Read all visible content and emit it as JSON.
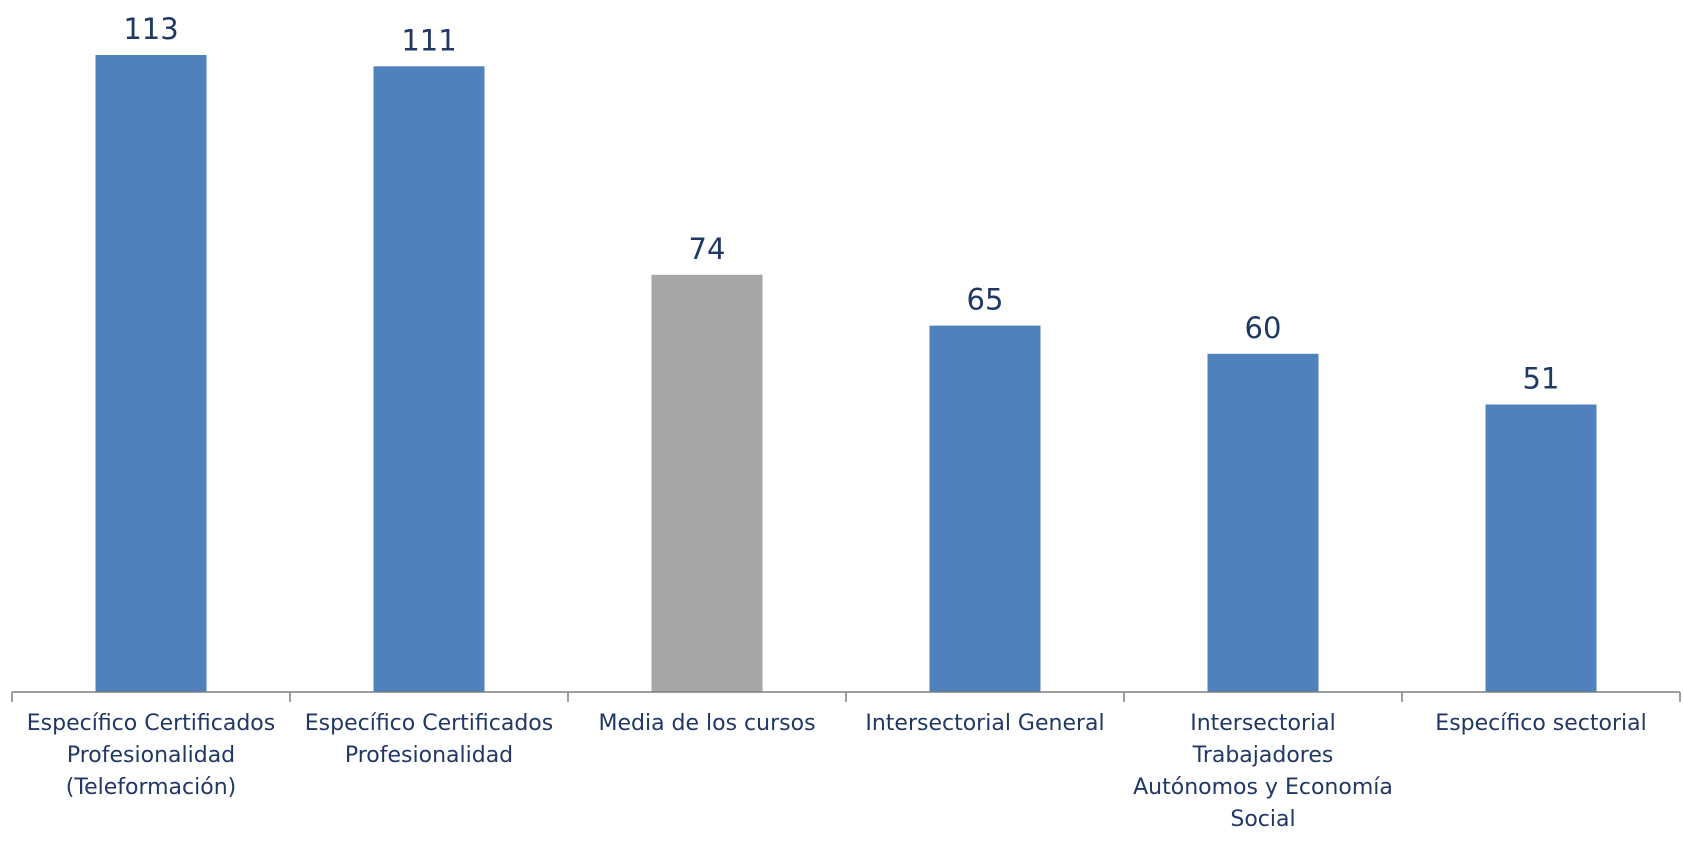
{
  "chart_data": {
    "type": "bar",
    "categories": [
      "Específico Certificados Profesionalidad (Teleformación)",
      "Específico Certificados Profesionalidad",
      "Media de los cursos",
      "Intersectorial General",
      "Intersectorial Trabajadores Autónomos y Economía Social",
      "Específico sectorial"
    ],
    "category_lines": [
      [
        "Específico Certificados",
        "Profesionalidad",
        "(Teleformación)"
      ],
      [
        "Específico Certificados",
        "Profesionalidad"
      ],
      [
        "Media de los cursos"
      ],
      [
        "Intersectorial General"
      ],
      [
        "Intersectorial",
        "Trabajadores",
        "Autónomos y Economía",
        "Social"
      ],
      [
        "Específico sectorial"
      ]
    ],
    "values": [
      113,
      111,
      74,
      65,
      60,
      51
    ],
    "colors": [
      "#4f81bd",
      "#4f81bd",
      "#a6a6a6",
      "#4f81bd",
      "#4f81bd",
      "#4f81bd"
    ],
    "title": "",
    "xlabel": "",
    "ylabel": "",
    "ylim": [
      0,
      113
    ],
    "grid": false,
    "data_labels": true,
    "legend": "none"
  }
}
